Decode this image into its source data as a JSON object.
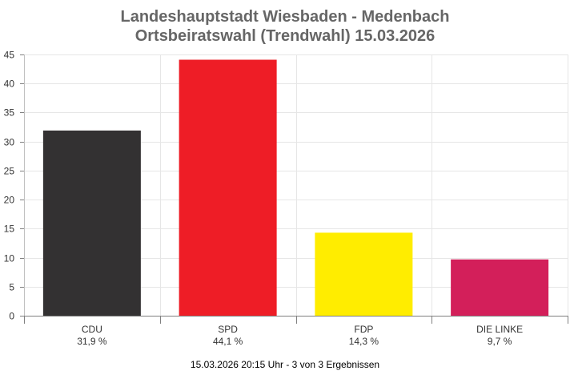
{
  "chart_data": {
    "type": "bar",
    "title": "Landeshauptstadt Wiesbaden - Medenbach",
    "subtitle": "Ortsbeiratswahl (Trendwahl) 15.03.2026",
    "categories": [
      "CDU",
      "SPD",
      "FDP",
      "DIE LINKE"
    ],
    "value_labels": [
      "31,9 %",
      "44,1 %",
      "14,3 %",
      "9,7 %"
    ],
    "values": [
      31.9,
      44.1,
      14.3,
      9.7
    ],
    "colors": [
      "#333132",
      "#ee1d26",
      "#ffed00",
      "#d31f5a"
    ],
    "ylim": [
      0,
      45
    ],
    "yticks": [
      0,
      5,
      10,
      15,
      20,
      25,
      30,
      35,
      40,
      45
    ],
    "grid": true,
    "xlabel": "",
    "ylabel": ""
  },
  "footer": "15.03.2026 20:15 Uhr - 3 von 3 Ergebnissen"
}
